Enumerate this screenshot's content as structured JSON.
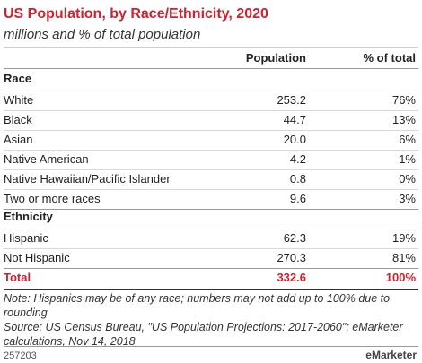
{
  "header": {
    "title": "US Population, by Race/Ethnicity, 2020",
    "subtitle": "millions and % of total population"
  },
  "table": {
    "columns": [
      "Population",
      "% of total"
    ],
    "sections": [
      {
        "label": "Race",
        "rows": [
          [
            "White",
            "253.2",
            "76%"
          ],
          [
            "Black",
            "44.7",
            "13%"
          ],
          [
            "Asian",
            "20.0",
            "6%"
          ],
          [
            "Native American",
            "4.2",
            "1%"
          ],
          [
            "Native Hawaiian/Pacific Islander",
            "0.8",
            "0%"
          ],
          [
            "Two or more races",
            "9.6",
            "3%"
          ]
        ]
      },
      {
        "label": "Ethnicity",
        "rows": [
          [
            "Hispanic",
            "62.3",
            "19%"
          ],
          [
            "Not Hispanic",
            "270.3",
            "81%"
          ]
        ]
      }
    ],
    "total": [
      "Total",
      "332.6",
      "100%"
    ]
  },
  "notes": [
    "Note: Hispanics may be of any race; numbers may not add up to 100% due to rounding",
    "Source: US Census Bureau, \"US Population Projections: 2017-2060\"; eMarketer calculations, Nov 14, 2018"
  ],
  "footer": {
    "id": "257203",
    "brand": "eMarketer"
  }
}
